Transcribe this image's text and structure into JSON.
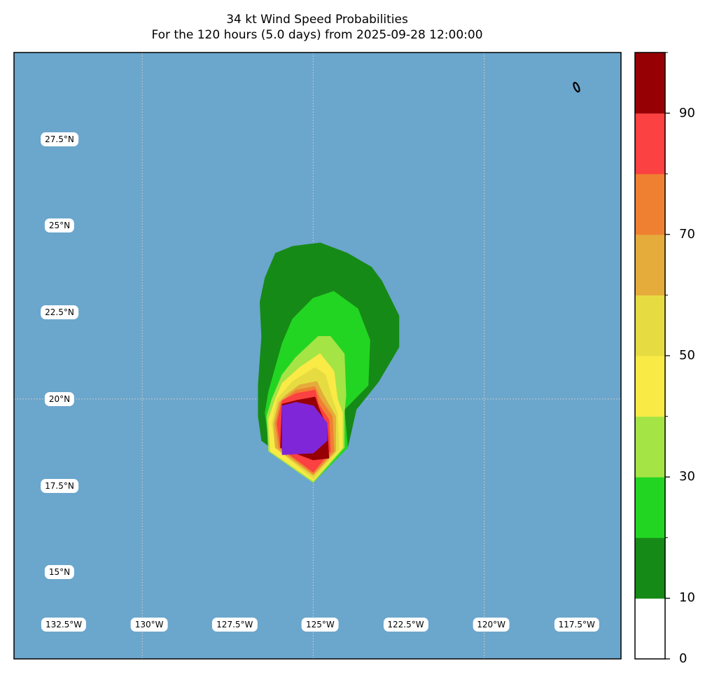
{
  "title": {
    "line1": "34 kt Wind Speed Probabilities",
    "line2": "For the 120 hours (5.0 days) from 2025-09-28 12:00:00"
  },
  "map": {
    "ocean_color": "#6ba6cc",
    "lon_range": [
      -133.75,
      -116.0
    ],
    "lat_range": [
      12.5,
      30.0
    ],
    "gridline_lons": [
      -130,
      -125,
      -120
    ],
    "gridline_lats": [
      20,
      30
    ],
    "lat_labels": [
      {
        "lat": 27.5,
        "text": "27.5°N"
      },
      {
        "lat": 25,
        "text": "25°N"
      },
      {
        "lat": 22.5,
        "text": "22.5°N"
      },
      {
        "lat": 20,
        "text": "20°N"
      },
      {
        "lat": 17.5,
        "text": "17.5°N"
      },
      {
        "lat": 15,
        "text": "15°N"
      }
    ],
    "lon_labels": [
      {
        "lon": -132.5,
        "text": "132.5°W"
      },
      {
        "lon": -130,
        "text": "130°W"
      },
      {
        "lon": -127.5,
        "text": "127.5°W"
      },
      {
        "lon": -125,
        "text": "125°W"
      },
      {
        "lon": -122.5,
        "text": "122.5°W"
      },
      {
        "lon": -120,
        "text": "120°W"
      },
      {
        "lon": -117.5,
        "text": "117.5°W"
      }
    ],
    "island": {
      "lon": -117.3,
      "lat": 29.0
    }
  },
  "chart_data": {
    "type": "heatmap",
    "variable": "34 kt Wind Speed Probabilities",
    "period_hours": 120,
    "start": "2025-09-28 12:00:00",
    "colorbar": {
      "range": [
        0,
        100
      ],
      "tick_labels": [
        "0",
        "10",
        "30",
        "50",
        "70",
        "90"
      ],
      "tick_values": [
        0,
        10,
        30,
        50,
        70,
        90
      ],
      "minor_ticks": [
        20,
        40,
        60,
        80,
        100
      ],
      "levels": [
        {
          "from": 0,
          "to": 10,
          "color": "#ffffff"
        },
        {
          "from": 10,
          "to": 20,
          "color": "#168a16"
        },
        {
          "from": 20,
          "to": 30,
          "color": "#23d523"
        },
        {
          "from": 30,
          "to": 40,
          "color": "#a5e445"
        },
        {
          "from": 40,
          "to": 50,
          "color": "#faea46"
        },
        {
          "from": 50,
          "to": 60,
          "color": "#e6dc42"
        },
        {
          "from": 60,
          "to": 70,
          "color": "#e5ab3b"
        },
        {
          "from": 70,
          "to": 80,
          "color": "#ef8032"
        },
        {
          "from": 80,
          "to": 90,
          "color": "#fb4141"
        },
        {
          "from": 90,
          "to": 100,
          "color": "#960005"
        },
        {
          "from": 100,
          "to": 110,
          "color": "#7f27d8"
        }
      ]
    },
    "contours": [
      {
        "level": 10,
        "color": "#168a16",
        "points": [
          [
            -126.6,
            20.4
          ],
          [
            -126.6,
            19.5
          ],
          [
            -126.5,
            18.8
          ],
          [
            -125,
            17.7
          ],
          [
            -124,
            18.6
          ],
          [
            -123.75,
            19.7
          ],
          [
            -123.1,
            20.5
          ],
          [
            -122.5,
            21.5
          ],
          [
            -122.5,
            22.4
          ],
          [
            -123,
            23.4
          ],
          [
            -123.3,
            23.8
          ],
          [
            -124,
            24.2
          ],
          [
            -124.8,
            24.5
          ],
          [
            -125.6,
            24.4
          ],
          [
            -126.1,
            24.2
          ],
          [
            -126.4,
            23.5
          ],
          [
            -126.55,
            22.8
          ],
          [
            -126.5,
            21.8
          ],
          [
            -126.6,
            20.4
          ]
        ]
      },
      {
        "level": 20,
        "color": "#23d523",
        "points": [
          [
            -126.3,
            20.2
          ],
          [
            -126.4,
            19.6
          ],
          [
            -126.25,
            18.5
          ],
          [
            -125,
            17.6
          ],
          [
            -124.5,
            18.1
          ],
          [
            -124.0,
            18.6
          ],
          [
            -124.1,
            19.7
          ],
          [
            -123.4,
            20.4
          ],
          [
            -123.35,
            21.7
          ],
          [
            -123.7,
            22.6
          ],
          [
            -124.4,
            23.1
          ],
          [
            -125.0,
            22.9
          ],
          [
            -125.6,
            22.3
          ],
          [
            -125.9,
            21.6
          ],
          [
            -126.3,
            20.2
          ]
        ]
      },
      {
        "level": 30,
        "color": "#a5e445",
        "points": [
          [
            -126.2,
            20.0
          ],
          [
            -126.35,
            19.5
          ],
          [
            -126.3,
            18.5
          ],
          [
            -125,
            17.6
          ],
          [
            -124.1,
            18.6
          ],
          [
            -124.1,
            19.6
          ],
          [
            -124.05,
            20.1
          ],
          [
            -124.1,
            21.3
          ],
          [
            -124.5,
            21.8
          ],
          [
            -124.85,
            21.8
          ],
          [
            -125.5,
            21.2
          ],
          [
            -125.9,
            20.7
          ],
          [
            -126.2,
            20.0
          ]
        ]
      },
      {
        "level": 40,
        "color": "#faea46",
        "points": [
          [
            -126.1,
            20.0
          ],
          [
            -126.3,
            19.4
          ],
          [
            -126.25,
            18.5
          ],
          [
            -125,
            17.65
          ],
          [
            -124.15,
            18.6
          ],
          [
            -124.15,
            19.6
          ],
          [
            -124.3,
            20.0
          ],
          [
            -124.4,
            20.8
          ],
          [
            -124.8,
            21.3
          ],
          [
            -125.4,
            20.9
          ],
          [
            -125.9,
            20.45
          ],
          [
            -126.1,
            20.0
          ]
        ]
      },
      {
        "level": 50,
        "color": "#e6dc42",
        "points": [
          [
            -126.05,
            20.0
          ],
          [
            -126.2,
            19.3
          ],
          [
            -126.1,
            18.6
          ],
          [
            -125.0,
            17.7
          ],
          [
            -124.25,
            18.55
          ],
          [
            -124.3,
            19.6
          ],
          [
            -124.45,
            20.0
          ],
          [
            -124.65,
            20.7
          ],
          [
            -124.95,
            20.9
          ],
          [
            -125.6,
            20.5
          ],
          [
            -126.05,
            20.0
          ]
        ]
      },
      {
        "level": 60,
        "color": "#e5ab3b",
        "points": [
          [
            -126.0,
            19.9
          ],
          [
            -126.15,
            19.3
          ],
          [
            -126.1,
            18.6
          ],
          [
            -125.0,
            17.8
          ],
          [
            -124.35,
            18.5
          ],
          [
            -124.35,
            19.5
          ],
          [
            -124.7,
            20.1
          ],
          [
            -124.9,
            20.5
          ],
          [
            -125.4,
            20.4
          ],
          [
            -125.8,
            20.1
          ],
          [
            -126.0,
            19.9
          ]
        ]
      },
      {
        "level": 70,
        "color": "#ef8032",
        "points": [
          [
            -125.95,
            19.9
          ],
          [
            -126.1,
            19.3
          ],
          [
            -126.0,
            18.6
          ],
          [
            -125.0,
            17.85
          ],
          [
            -124.4,
            18.5
          ],
          [
            -124.45,
            19.5
          ],
          [
            -124.8,
            20.0
          ],
          [
            -124.95,
            20.35
          ],
          [
            -125.5,
            20.25
          ],
          [
            -125.95,
            19.9
          ]
        ]
      },
      {
        "level": 80,
        "color": "#fb4141",
        "points": [
          [
            -125.9,
            19.95
          ],
          [
            -126.05,
            19.3
          ],
          [
            -125.95,
            18.6
          ],
          [
            -125.0,
            17.9
          ],
          [
            -124.5,
            18.5
          ],
          [
            -124.55,
            19.4
          ],
          [
            -124.85,
            19.85
          ],
          [
            -124.95,
            20.25
          ],
          [
            -125.5,
            20.15
          ],
          [
            -125.9,
            19.95
          ]
        ]
      },
      {
        "level": 90,
        "color": "#960005",
        "points": [
          [
            -125.9,
            19.85
          ],
          [
            -125.95,
            18.6
          ],
          [
            -125.0,
            18.25
          ],
          [
            -124.55,
            18.3
          ],
          [
            -124.6,
            19.2
          ],
          [
            -124.85,
            19.75
          ],
          [
            -124.95,
            20.05
          ],
          [
            -125.5,
            19.95
          ],
          [
            -125.9,
            19.85
          ]
        ]
      },
      {
        "level": 100,
        "color": "#7f27d8",
        "points": [
          [
            -125.9,
            19.8
          ],
          [
            -125.9,
            18.4
          ],
          [
            -125.0,
            18.45
          ],
          [
            -124.6,
            18.8
          ],
          [
            -124.6,
            19.3
          ],
          [
            -125.0,
            19.8
          ],
          [
            -125.5,
            19.9
          ],
          [
            -125.9,
            19.8
          ]
        ]
      }
    ]
  }
}
